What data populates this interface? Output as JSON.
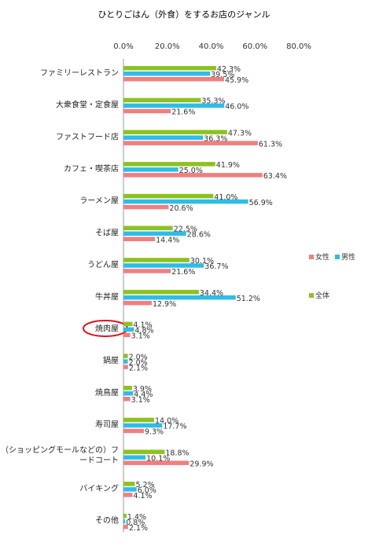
{
  "chart_data": {
    "type": "bar",
    "orientation": "horizontal",
    "title": "ひとりごはん（外食）をするお店のジャンル",
    "xlim": [
      0,
      80
    ],
    "xticks": [
      "0.0%",
      "20.0%",
      "40.0%",
      "60.0%",
      "80.0%"
    ],
    "grid": false,
    "legend_position": "right",
    "categories": [
      "ファミリーレストラン",
      "大衆食堂・定食屋",
      "ファストフード店",
      "カフェ・喫茶店",
      "ラーメン屋",
      "そば屋",
      "うどん屋",
      "牛丼屋",
      "焼肉屋",
      "鍋屋",
      "焼鳥屋",
      "寿司屋",
      [
        "（ショッピングモールなどの）フ",
        "ードコート"
      ],
      "バイキング",
      "その他"
    ],
    "highlighted_category": "焼肉屋",
    "series": [
      {
        "name": "全体",
        "color": "#8dc21f",
        "values": [
          42.3,
          35.3,
          47.3,
          41.9,
          41.0,
          22.5,
          30.1,
          34.4,
          4.1,
          2.0,
          3.9,
          14.0,
          18.8,
          5.2,
          1.4
        ],
        "labels": [
          "42.3%",
          "35.3%",
          "47.3%",
          "41.9%",
          "41.0%",
          "22.5%",
          "30.1%",
          "34.4%",
          "4.1%",
          "2.0%",
          "3.9%",
          "14.0%",
          "18.8%",
          "5.2%",
          "1.4%"
        ]
      },
      {
        "name": "男性",
        "color": "#2dbde9",
        "values": [
          39.5,
          46.0,
          36.3,
          25.0,
          56.9,
          28.6,
          36.7,
          51.2,
          4.8,
          2.0,
          4.4,
          17.7,
          10.1,
          6.0,
          0.8
        ],
        "labels": [
          "39.5%",
          "46.0%",
          "36.3%",
          "25.0%",
          "56.9%",
          "28.6%",
          "36.7%",
          "51.2%",
          "4.8%",
          "2.0%",
          "4.4%",
          "17.7%",
          "10.1%",
          "6.0%",
          "0.8%"
        ]
      },
      {
        "name": "女性",
        "color": "#f07f7f",
        "values": [
          45.9,
          21.6,
          61.3,
          63.4,
          20.6,
          14.4,
          21.6,
          12.9,
          3.1,
          2.1,
          3.1,
          9.3,
          29.9,
          4.1,
          2.1
        ],
        "labels": [
          "45.9%",
          "21.6%",
          "61.3%",
          "63.4%",
          "20.6%",
          "14.4%",
          "21.6%",
          "12.9%",
          "3.1%",
          "2.1%",
          "3.1%",
          "9.3%",
          "29.9%",
          "4.1%",
          "2.1%"
        ]
      }
    ]
  }
}
